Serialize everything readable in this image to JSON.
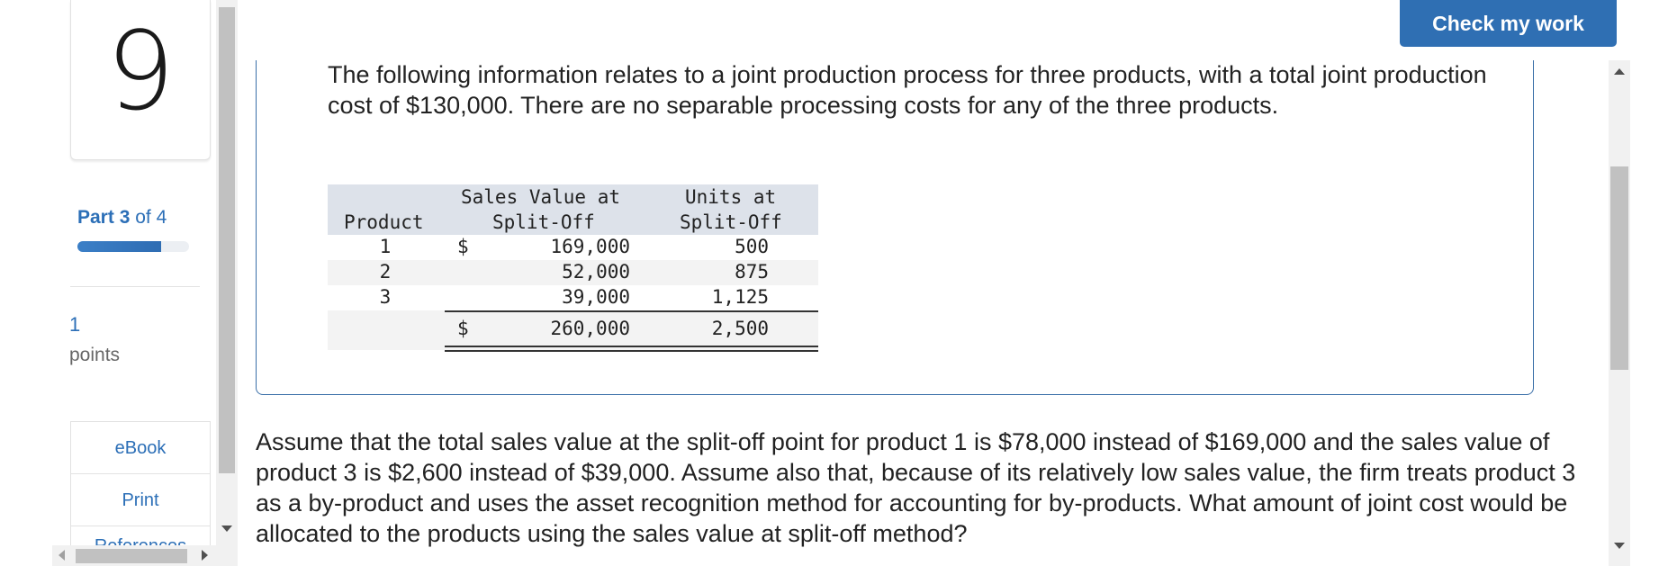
{
  "sidebar": {
    "question_number": "9",
    "part": {
      "prefix": "Part",
      "current": "3",
      "separator": "of",
      "total": "4"
    },
    "part_progress_percent": 75,
    "points_value": "1",
    "points_label": "points",
    "resources": [
      "eBook",
      "Print",
      "References"
    ]
  },
  "header": {
    "check_button_label": "Check my work"
  },
  "content": {
    "intro": "The following information relates to a joint production process for three products, with a total joint production cost of $130,000. There are no separable processing costs for any of the three products.",
    "table": {
      "headers": {
        "product": "Product",
        "sales_value_line1": "Sales Value at",
        "sales_value_line2": "Split-Off",
        "units_line1": "Units at",
        "units_line2": "Split-Off"
      },
      "rows": [
        {
          "product": "1",
          "dollar": "$",
          "sales_value": "169,000",
          "units": "500"
        },
        {
          "product": "2",
          "dollar": "",
          "sales_value": "52,000",
          "units": "875"
        },
        {
          "product": "3",
          "dollar": "",
          "sales_value": "39,000",
          "units": "1,125"
        }
      ],
      "total": {
        "dollar": "$",
        "sales_value": "260,000",
        "units": "2,500"
      }
    },
    "question": "Assume that the total sales value at the split-off point for product 1 is $78,000 instead of $169,000 and the sales value of product 3 is $2,600 instead of $39,000. Assume also that, because of its relatively low sales value, the firm treats product 3 as a by-product and uses the asset recognition method for accounting for by-products. What amount of joint cost would be allocated to the products using the sales value at split-off method?"
  },
  "colors": {
    "accent": "#2f6fb3",
    "link": "#2c6fb7",
    "table_header_bg": "#dde2ea"
  },
  "icons": [
    "scroll-up-icon",
    "scroll-down-icon",
    "scroll-left-icon",
    "scroll-right-icon"
  ]
}
